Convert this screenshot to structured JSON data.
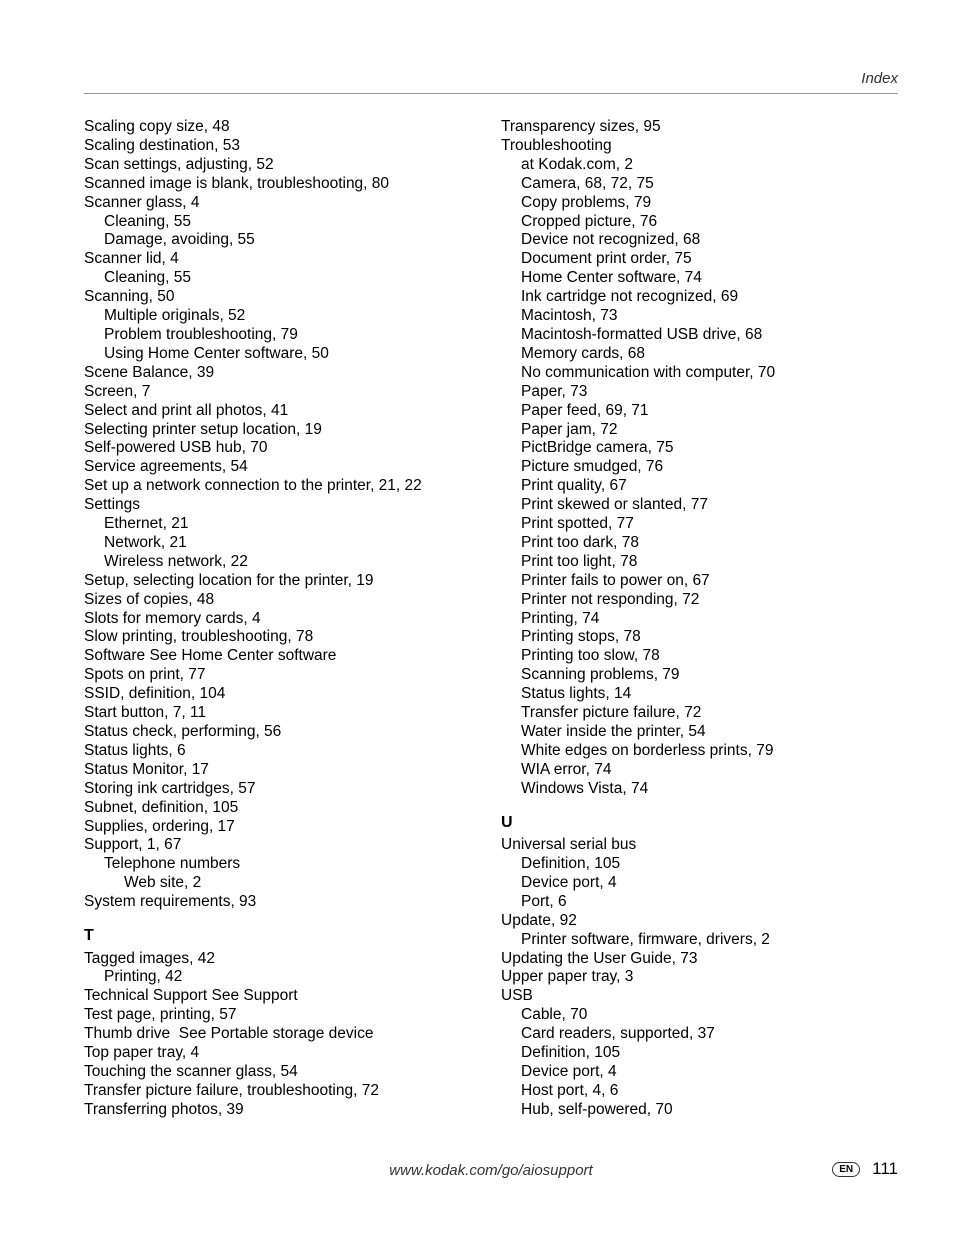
{
  "header_title": "Index",
  "footer_url": "www.kodak.com/go/aiosupport",
  "lang_code": "EN",
  "page_number": "111",
  "col_left": [
    {
      "t": "Scaling copy size, 48"
    },
    {
      "t": "Scaling destination, 53"
    },
    {
      "t": "Scan settings, adjusting, 52"
    },
    {
      "t": "Scanned image is blank, troubleshooting, 80"
    },
    {
      "t": "Scanner glass, 4"
    },
    {
      "t": "Cleaning, 55",
      "i": 1
    },
    {
      "t": "Damage, avoiding, 55",
      "i": 1
    },
    {
      "t": "Scanner lid, 4"
    },
    {
      "t": "Cleaning, 55",
      "i": 1
    },
    {
      "t": "Scanning, 50"
    },
    {
      "t": "Multiple originals, 52",
      "i": 1
    },
    {
      "t": "Problem troubleshooting, 79",
      "i": 1
    },
    {
      "t": "Using Home Center software, 50",
      "i": 1
    },
    {
      "t": "Scene Balance, 39"
    },
    {
      "t": "Screen, 7"
    },
    {
      "t": "Select and print all photos, 41"
    },
    {
      "t": "Selecting printer setup location, 19"
    },
    {
      "t": "Self-powered USB hub, 70"
    },
    {
      "t": "Service agreements, 54"
    },
    {
      "t": "Set up a network connection to the printer, 21, 22"
    },
    {
      "t": "Settings"
    },
    {
      "t": "Ethernet, 21",
      "i": 1
    },
    {
      "t": "Network, 21",
      "i": 1
    },
    {
      "t": "Wireless network, 22",
      "i": 1
    },
    {
      "t": "Setup, selecting location for the printer, 19"
    },
    {
      "t": "Sizes of copies, 48"
    },
    {
      "t": "Slots for memory cards, 4"
    },
    {
      "t": "Slow printing, troubleshooting, 78"
    },
    {
      "t": "Software See Home Center software"
    },
    {
      "t": "Spots on print, 77"
    },
    {
      "t": "SSID, definition, 104"
    },
    {
      "t": "Start button, 7, 11"
    },
    {
      "t": "Status check, performing, 56"
    },
    {
      "t": "Status lights, 6"
    },
    {
      "t": "Status Monitor, 17"
    },
    {
      "t": "Storing ink cartridges, 57"
    },
    {
      "t": "Subnet, definition, 105"
    },
    {
      "t": "Supplies, ordering, 17"
    },
    {
      "t": "Support, 1, 67"
    },
    {
      "t": "Telephone numbers",
      "i": 1
    },
    {
      "t": "Web site, 2",
      "i": 2
    },
    {
      "t": "System requirements, 93"
    },
    {
      "t": "T",
      "h": true
    },
    {
      "t": "Tagged images, 42"
    },
    {
      "t": "Printing, 42",
      "i": 1
    },
    {
      "t": "Technical Support See Support"
    },
    {
      "t": "Test page, printing, 57"
    },
    {
      "t": "Thumb drive  See Portable storage device"
    },
    {
      "t": "Top paper tray, 4"
    },
    {
      "t": "Touching the scanner glass, 54"
    },
    {
      "t": "Transfer picture failure, troubleshooting, 72"
    },
    {
      "t": "Transferring photos, 39"
    }
  ],
  "col_right": [
    {
      "t": "Transparency sizes, 95"
    },
    {
      "t": "Troubleshooting"
    },
    {
      "t": "at Kodak.com, 2",
      "i": 1
    },
    {
      "t": "Camera, 68, 72, 75",
      "i": 1
    },
    {
      "t": "Copy problems, 79",
      "i": 1
    },
    {
      "t": "Cropped picture, 76",
      "i": 1
    },
    {
      "t": "Device not recognized, 68",
      "i": 1
    },
    {
      "t": "Document print order, 75",
      "i": 1
    },
    {
      "t": "Home Center software, 74",
      "i": 1
    },
    {
      "t": "Ink cartridge not recognized, 69",
      "i": 1
    },
    {
      "t": "Macintosh, 73",
      "i": 1
    },
    {
      "t": "Macintosh-formatted USB drive, 68",
      "i": 1
    },
    {
      "t": "Memory cards, 68",
      "i": 1
    },
    {
      "t": "No communication with computer, 70",
      "i": 1
    },
    {
      "t": "Paper, 73",
      "i": 1
    },
    {
      "t": "Paper feed, 69, 71",
      "i": 1
    },
    {
      "t": "Paper jam, 72",
      "i": 1
    },
    {
      "t": "PictBridge camera, 75",
      "i": 1
    },
    {
      "t": "Picture smudged, 76",
      "i": 1
    },
    {
      "t": "Print quality, 67",
      "i": 1
    },
    {
      "t": "Print skewed or slanted, 77",
      "i": 1
    },
    {
      "t": "Print spotted, 77",
      "i": 1
    },
    {
      "t": "Print too dark, 78",
      "i": 1
    },
    {
      "t": "Print too light, 78",
      "i": 1
    },
    {
      "t": "Printer fails to power on, 67",
      "i": 1
    },
    {
      "t": "Printer not responding, 72",
      "i": 1
    },
    {
      "t": "Printing, 74",
      "i": 1
    },
    {
      "t": "Printing stops, 78",
      "i": 1
    },
    {
      "t": "Printing too slow, 78",
      "i": 1
    },
    {
      "t": "Scanning problems, 79",
      "i": 1
    },
    {
      "t": "Status lights, 14",
      "i": 1
    },
    {
      "t": "Transfer picture failure, 72",
      "i": 1
    },
    {
      "t": "Water inside the printer, 54",
      "i": 1
    },
    {
      "t": "White edges on borderless prints, 79",
      "i": 1
    },
    {
      "t": "WIA error, 74",
      "i": 1
    },
    {
      "t": "Windows Vista, 74",
      "i": 1
    },
    {
      "t": "U",
      "h": true
    },
    {
      "t": "Universal serial bus"
    },
    {
      "t": "Definition, 105",
      "i": 1
    },
    {
      "t": "Device port, 4",
      "i": 1
    },
    {
      "t": "Port, 6",
      "i": 1
    },
    {
      "t": "Update, 92"
    },
    {
      "t": "Printer software, firmware, drivers, 2",
      "i": 1
    },
    {
      "t": "Updating the User Guide, 73"
    },
    {
      "t": "Upper paper tray, 3"
    },
    {
      "t": "USB"
    },
    {
      "t": "Cable, 70",
      "i": 1
    },
    {
      "t": "Card readers, supported, 37",
      "i": 1
    },
    {
      "t": "Definition, 105",
      "i": 1
    },
    {
      "t": "Device port, 4",
      "i": 1
    },
    {
      "t": "Host port, 4, 6",
      "i": 1
    },
    {
      "t": "Hub, self-powered, 70",
      "i": 1
    }
  ]
}
